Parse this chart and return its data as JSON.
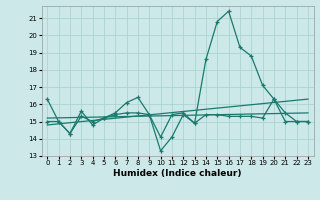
{
  "xlabel": "Humidex (Indice chaleur)",
  "bg_color": "#cce8e8",
  "line_color": "#1a7a6e",
  "grid_color": "#aad4d0",
  "ylim": [
    13,
    21.7
  ],
  "xlim": [
    -0.5,
    23.5
  ],
  "yticks": [
    13,
    14,
    15,
    16,
    17,
    18,
    19,
    20,
    21
  ],
  "xticks": [
    0,
    1,
    2,
    3,
    4,
    5,
    6,
    7,
    8,
    9,
    10,
    11,
    12,
    13,
    14,
    15,
    16,
    17,
    18,
    19,
    20,
    21,
    22,
    23
  ],
  "line1_x": [
    0,
    1,
    2,
    3,
    4,
    5,
    6,
    7,
    8,
    9,
    10,
    11,
    12,
    13,
    14,
    15,
    16,
    17,
    18,
    19,
    20,
    21,
    22,
    23
  ],
  "line1_y": [
    16.3,
    15.0,
    14.3,
    15.6,
    14.8,
    15.2,
    15.5,
    16.1,
    16.4,
    15.4,
    14.1,
    15.4,
    15.5,
    14.9,
    18.6,
    20.8,
    21.4,
    19.3,
    18.8,
    17.1,
    16.3,
    15.5,
    15.0,
    15.0
  ],
  "line2_x": [
    0,
    1,
    2,
    3,
    4,
    5,
    6,
    7,
    8,
    9,
    10,
    11,
    12,
    13,
    14,
    15,
    16,
    17,
    18,
    19,
    20,
    21,
    22,
    23
  ],
  "line2_y": [
    15.0,
    15.0,
    14.3,
    15.3,
    15.0,
    15.2,
    15.4,
    15.5,
    15.5,
    15.4,
    13.3,
    14.1,
    15.4,
    14.9,
    15.4,
    15.4,
    15.3,
    15.3,
    15.3,
    15.2,
    16.3,
    15.0,
    15.0,
    15.0
  ],
  "line3_x": [
    0,
    23
  ],
  "line3_y": [
    14.8,
    16.3
  ],
  "line4_x": [
    0,
    23
  ],
  "line4_y": [
    15.2,
    15.5
  ]
}
